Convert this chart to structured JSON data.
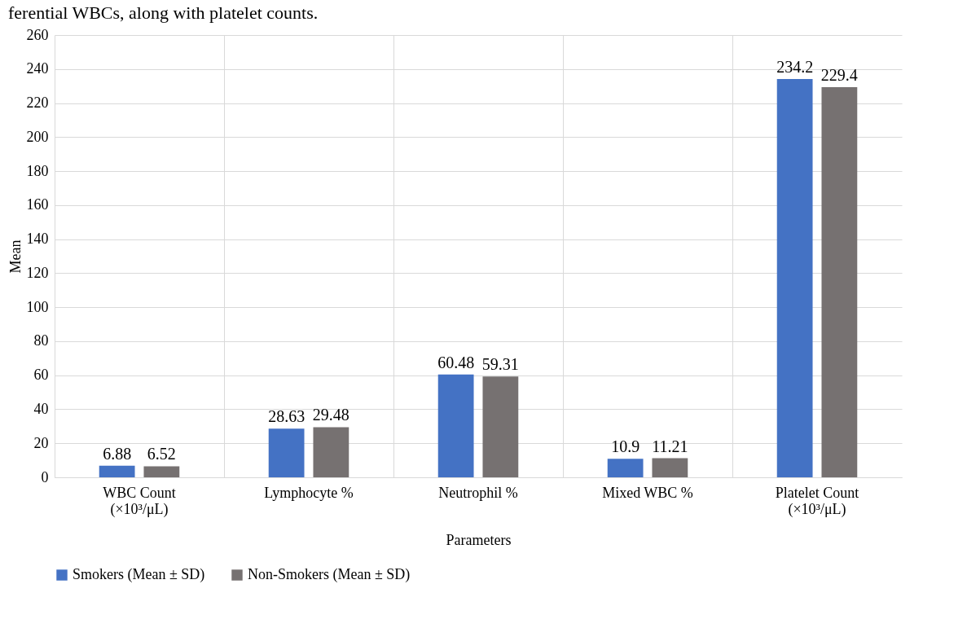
{
  "chart_data": {
    "type": "bar",
    "title": "ferential WBCs, along with platelet counts.",
    "xlabel": "Parameters",
    "ylabel": "Mean",
    "categories": [
      "WBC Count\n(×10³/μL)",
      "Lymphocyte %",
      "Neutrophil %",
      "Mixed WBC %",
      "Platelet Count\n(×10³/μL)"
    ],
    "series": [
      {
        "name": "Smokers (Mean ± SD)",
        "color": "#4472c4",
        "values": [
          6.88,
          28.63,
          60.48,
          10.9,
          234.2
        ]
      },
      {
        "name": "Non-Smokers (Mean ± SD)",
        "color": "#767171",
        "values": [
          6.52,
          29.48,
          59.31,
          11.21,
          229.4
        ]
      }
    ],
    "ylim": [
      0,
      260
    ],
    "yticks": [
      0,
      20,
      40,
      60,
      80,
      100,
      120,
      140,
      160,
      180,
      200,
      220,
      240,
      260
    ],
    "grid": true,
    "legend": "bottom",
    "data_labels": true
  }
}
